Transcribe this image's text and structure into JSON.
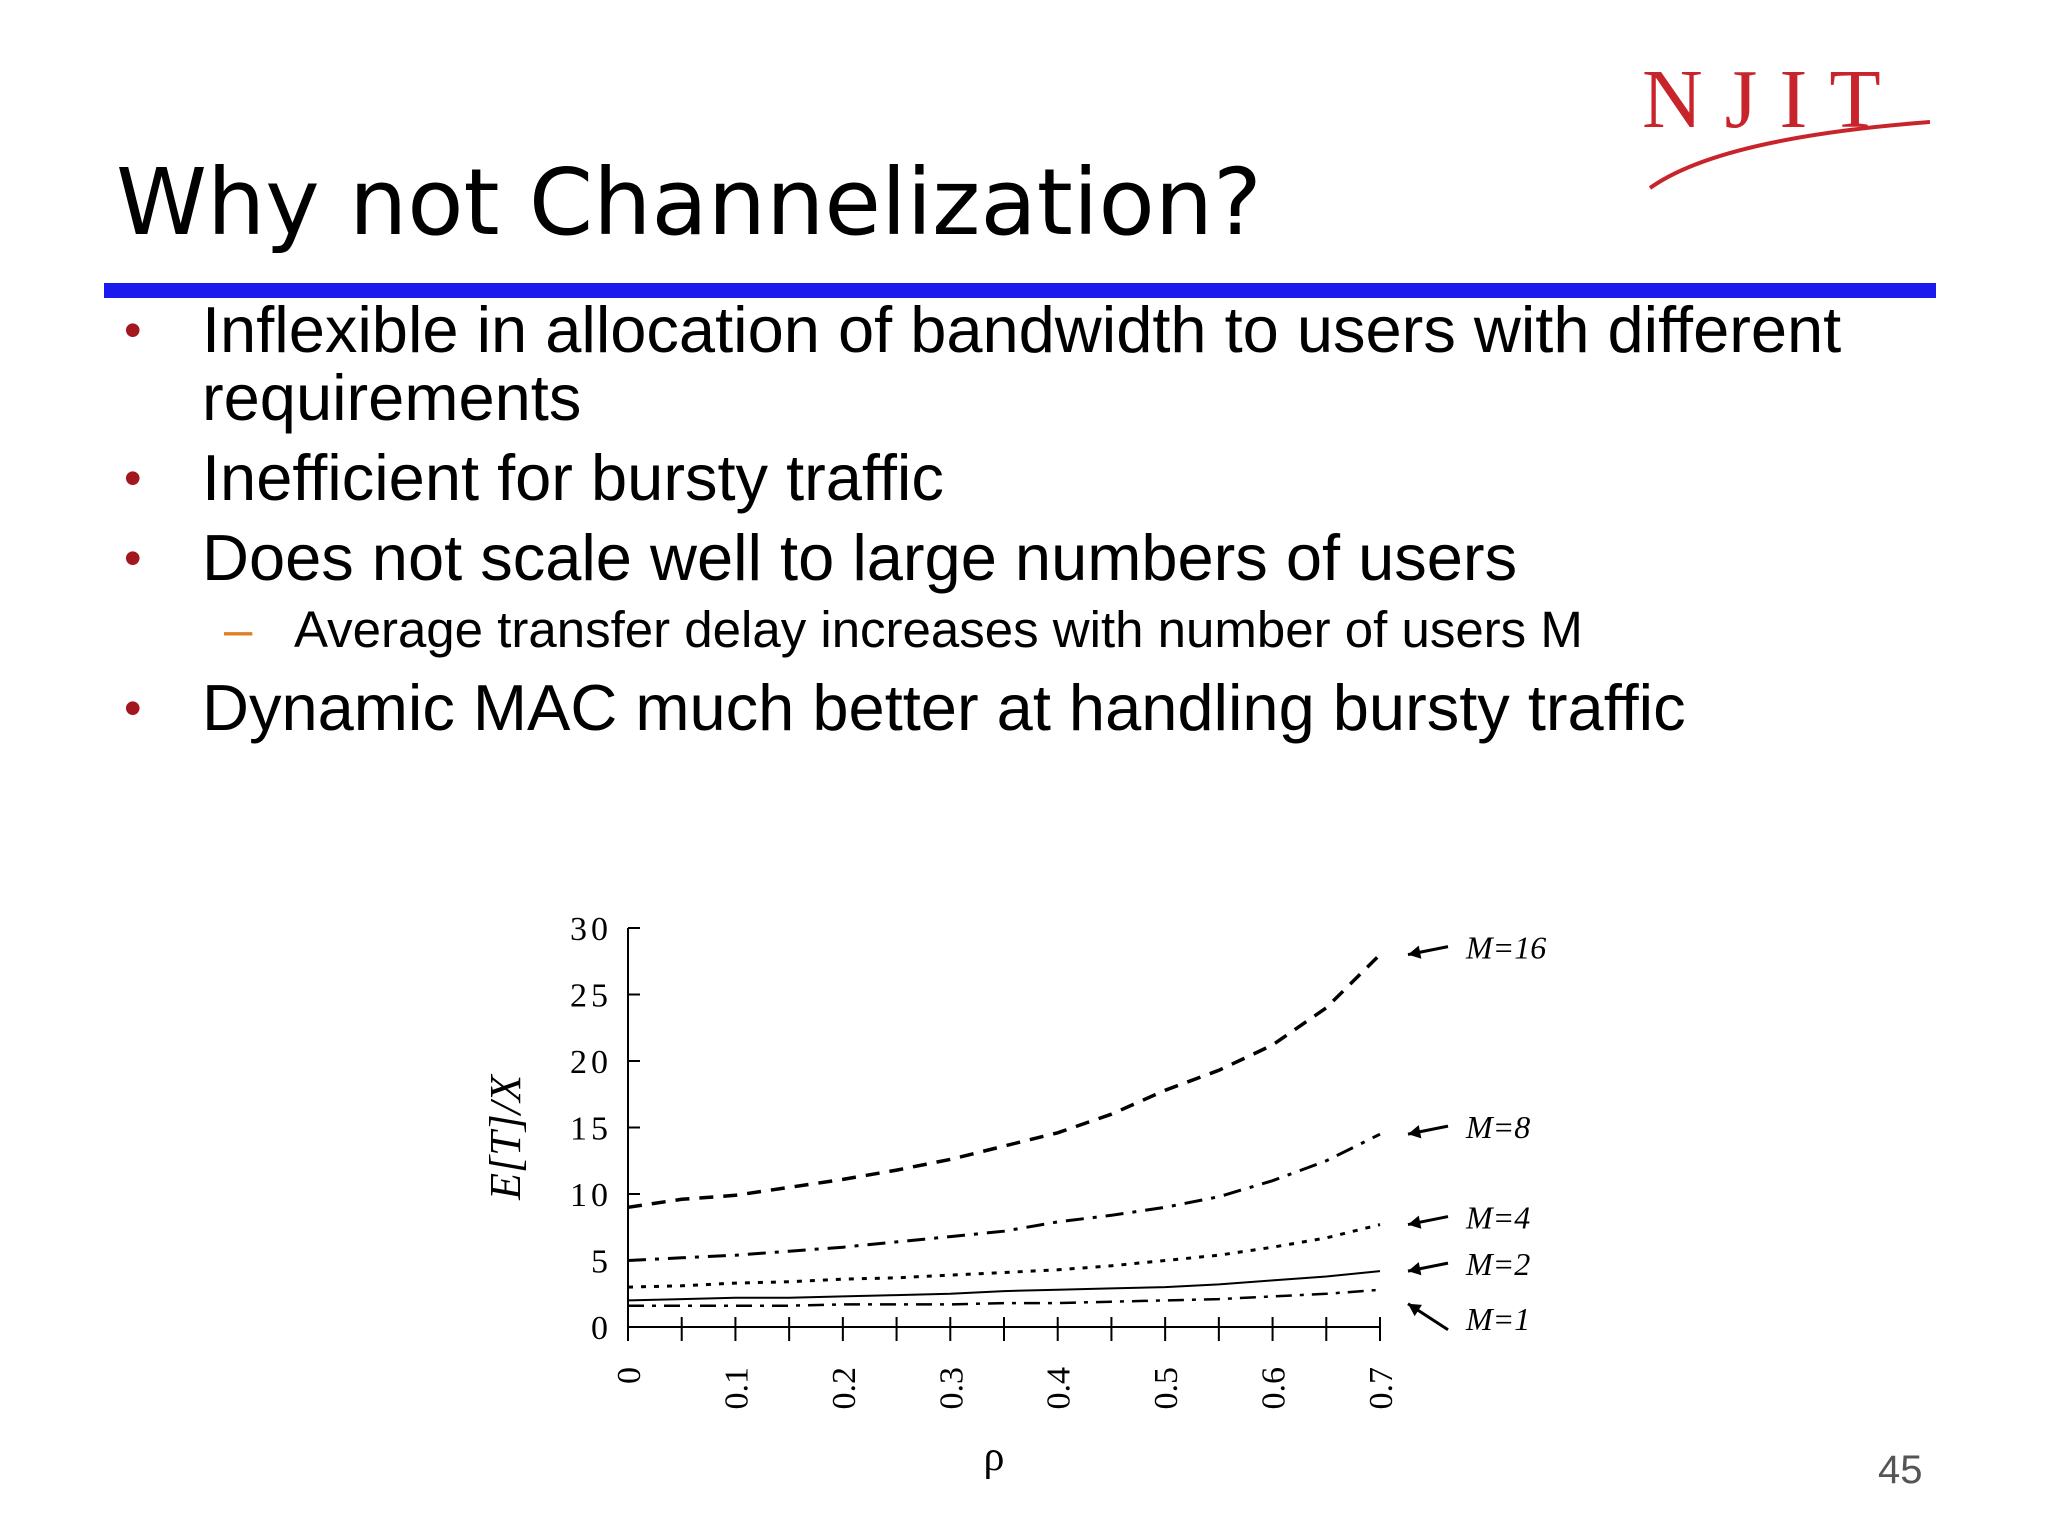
{
  "logo": {
    "text": "NJIT"
  },
  "slide": {
    "title": "Why not Channelization?",
    "bullets": [
      {
        "text": "Inflexible in allocation of bandwidth to users with different requirements"
      },
      {
        "text": "Inefficient for bursty traffic"
      },
      {
        "text": "Does not scale well to large numbers of users"
      },
      {
        "text": "Dynamic MAC much better at handling bursty traffic"
      }
    ],
    "sub_bullet": "Average transfer delay increases with number of users M",
    "page_number": "45"
  },
  "colors": {
    "accent_rule": "#1a1aee",
    "bullet": "#a3171f",
    "dash": "#e07e26",
    "logo": "#c8242c"
  },
  "chart_data": {
    "type": "line",
    "xlabel": "ρ",
    "ylabel": "E[T]/X",
    "xlim": [
      0,
      0.7
    ],
    "ylim": [
      0,
      30
    ],
    "xticks": [
      "0",
      "0.1",
      "0.2",
      "0.3",
      "0.4",
      "0.5",
      "0.6",
      "0.7"
    ],
    "yticks": [
      "0",
      "5",
      "10",
      "15",
      "20",
      "25",
      "30"
    ],
    "grid": false,
    "x": [
      0,
      0.05,
      0.1,
      0.15,
      0.2,
      0.25,
      0.3,
      0.35,
      0.4,
      0.45,
      0.5,
      0.55,
      0.6,
      0.65,
      0.7
    ],
    "series": [
      {
        "name": "M=16",
        "values": [
          9.0,
          9.6,
          9.9,
          10.5,
          11.1,
          11.8,
          12.6,
          13.6,
          14.6,
          16.0,
          17.8,
          19.3,
          21.2,
          24.0,
          28.0
        ]
      },
      {
        "name": "M=8",
        "values": [
          5.0,
          5.2,
          5.4,
          5.7,
          6.0,
          6.4,
          6.8,
          7.2,
          7.9,
          8.4,
          9.0,
          9.8,
          11.0,
          12.5,
          14.5
        ]
      },
      {
        "name": "M=4",
        "values": [
          3.0,
          3.1,
          3.3,
          3.4,
          3.6,
          3.7,
          3.9,
          4.1,
          4.3,
          4.6,
          5.0,
          5.4,
          6.0,
          6.7,
          7.7
        ]
      },
      {
        "name": "M=2",
        "values": [
          2.0,
          2.1,
          2.2,
          2.2,
          2.3,
          2.4,
          2.5,
          2.7,
          2.8,
          2.9,
          3.0,
          3.2,
          3.5,
          3.8,
          4.2
        ]
      },
      {
        "name": "M=1",
        "values": [
          1.6,
          1.6,
          1.6,
          1.6,
          1.7,
          1.7,
          1.7,
          1.8,
          1.8,
          1.9,
          2.0,
          2.1,
          2.3,
          2.5,
          2.8
        ]
      }
    ],
    "legend": "right, arrow-annotated labels"
  }
}
